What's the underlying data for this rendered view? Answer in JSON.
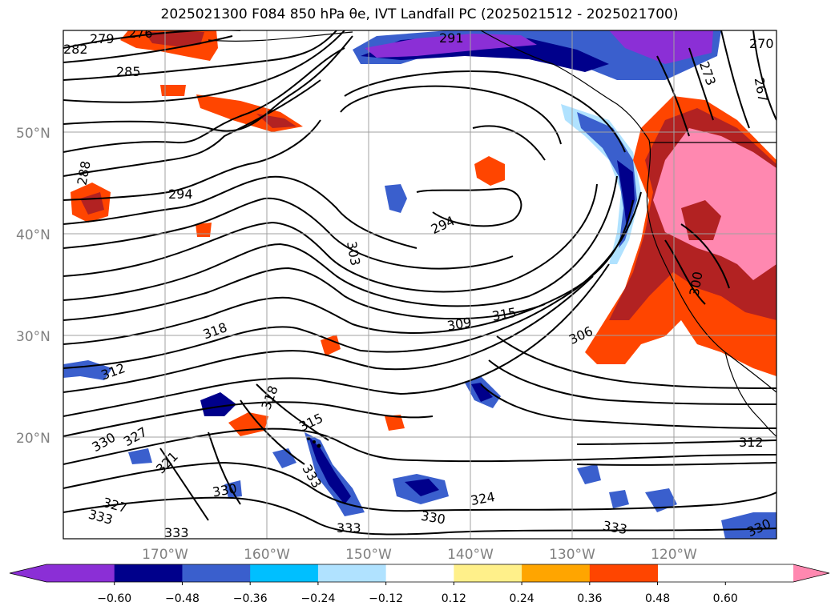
{
  "title": "2025021300 F084 850 hPa θe, IVT Landfall PC (2025021512 - 2025021700)",
  "map": {
    "lat_labels": [
      "50°N",
      "40°N",
      "30°N",
      "20°N"
    ],
    "lon_labels": [
      "170°W",
      "160°W",
      "150°W",
      "140°W",
      "130°W",
      "120°W"
    ],
    "contour_labels": [
      "276",
      "279",
      "282",
      "285",
      "291",
      "270",
      "267",
      "273",
      "288",
      "294",
      "294",
      "303",
      "318",
      "312",
      "309",
      "315",
      "306",
      "300",
      "318",
      "315",
      "330",
      "327",
      "321",
      "330",
      "333",
      "327",
      "333",
      "333",
      "333",
      "330",
      "324",
      "333",
      "312",
      "330"
    ]
  },
  "colorbar": {
    "tick_labels": [
      "−0.60",
      "−0.48",
      "−0.36",
      "−0.24",
      "−0.12",
      "0.12",
      "0.24",
      "0.36",
      "0.48",
      "0.60"
    ],
    "colors": [
      "#8b2fd6",
      "#00008b",
      "#3a5fcd",
      "#00bfff",
      "#b0e2ff",
      "#ffffff",
      "#fff08a",
      "#ffa500",
      "#ff4500",
      "#b22222",
      "#ff88b0"
    ]
  }
}
